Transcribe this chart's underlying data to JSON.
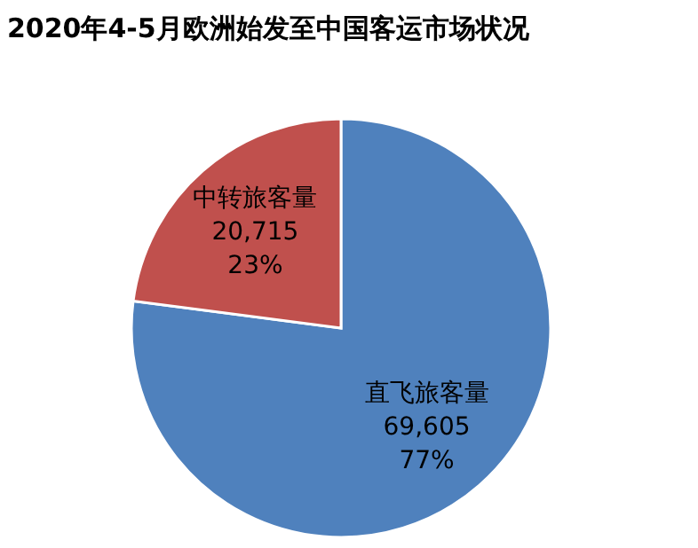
{
  "chart_data": {
    "type": "pie",
    "title": "2020年4-5月欧洲始发至中国客运市场状况",
    "categories": [
      "直飞旅客量",
      "中转旅客量"
    ],
    "values": [
      69605,
      20715
    ],
    "colors": [
      "#4f81bd",
      "#c0504d"
    ],
    "value_labels": [
      "69,605\n77%",
      "20,715\n23%"
    ],
    "legend": false
  }
}
